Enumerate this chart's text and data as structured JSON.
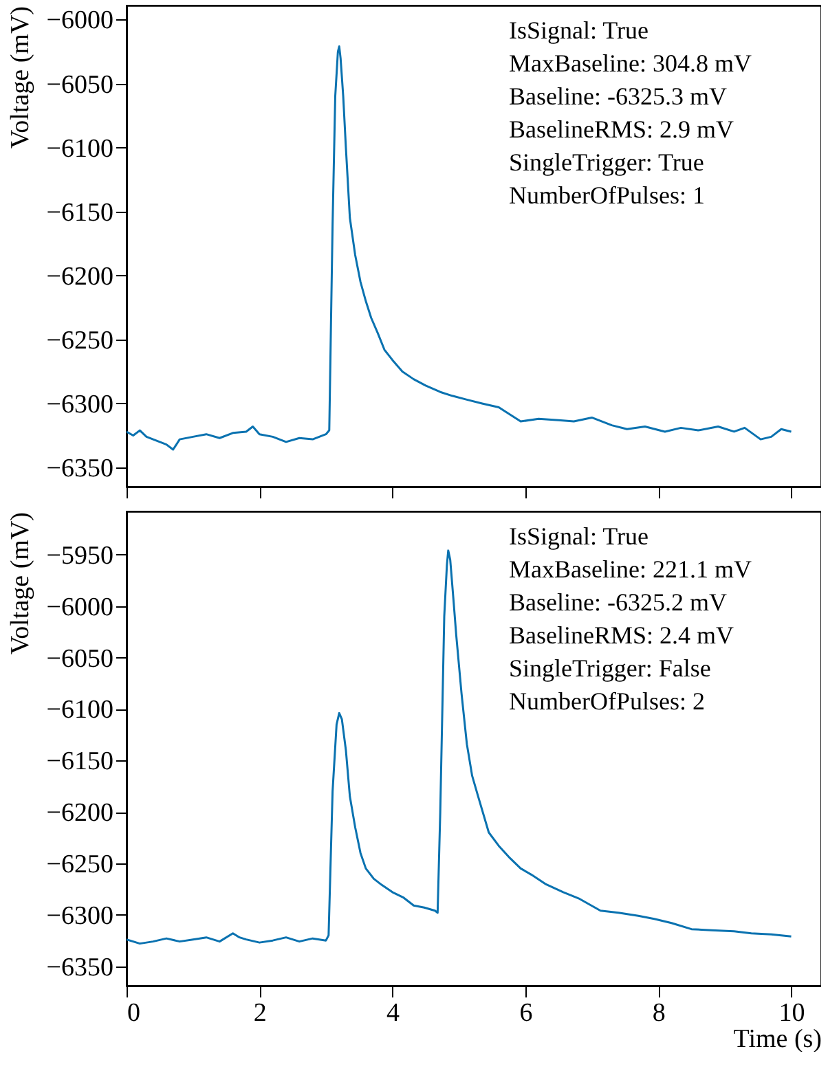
{
  "chart_data": [
    {
      "type": "line",
      "ylabel": "Voltage (mV)",
      "xlim": [
        0,
        10.45
      ],
      "xticks": [
        0,
        2,
        4,
        6,
        8,
        10
      ],
      "ylim": [
        -6365,
        -5989
      ],
      "yticks": [
        -6350,
        -6300,
        -6250,
        -6200,
        -6150,
        -6100,
        -6050,
        -6000
      ],
      "tick_labels": "y",
      "annotations": [
        "IsSignal: True",
        "MaxBaseline: 304.8 mV",
        "Baseline: -6325.3 mV",
        "BaselineRMS: 2.9 mV",
        "SingleTrigger: True",
        "NumberOfPulses: 1"
      ],
      "series": [
        {
          "color": "#0a72b0",
          "x": [
            0,
            0.1,
            0.2,
            0.3,
            0.4,
            0.5,
            0.6,
            0.7,
            0.8,
            1.0,
            1.2,
            1.4,
            1.6,
            1.8,
            1.9,
            2.0,
            2.2,
            2.4,
            2.6,
            2.8,
            3.0,
            3.05,
            3.1,
            3.14,
            3.18,
            3.2,
            3.22,
            3.26,
            3.3,
            3.36,
            3.44,
            3.52,
            3.6,
            3.68,
            3.78,
            3.88,
            4.0,
            4.15,
            4.32,
            4.5,
            4.72,
            4.9,
            5.12,
            5.35,
            5.6,
            5.93,
            6.2,
            6.5,
            6.73,
            7.0,
            7.3,
            7.53,
            7.8,
            8.1,
            8.34,
            8.6,
            8.9,
            9.14,
            9.3,
            9.54,
            9.7,
            9.85,
            10
          ],
          "values": [
            -6322,
            -6325,
            -6321,
            -6326,
            -6328,
            -6330,
            -6332,
            -6336,
            -6328,
            -6326,
            -6324,
            -6327,
            -6323,
            -6322,
            -6318,
            -6324,
            -6326,
            -6330,
            -6327,
            -6328,
            -6324,
            -6321,
            -6160,
            -6060,
            -6025,
            -6021,
            -6030,
            -6060,
            -6100,
            -6155,
            -6184,
            -6205,
            -6220,
            -6233,
            -6245,
            -6258,
            -6266,
            -6275,
            -6281,
            -6286,
            -6291,
            -6294,
            -6297,
            -6300,
            -6303,
            -6314,
            -6312,
            -6313,
            -6314,
            -6311,
            -6317,
            -6320,
            -6318,
            -6322,
            -6319,
            -6321,
            -6318,
            -6322,
            -6319,
            -6328,
            -6326,
            -6320,
            -6322
          ]
        }
      ]
    },
    {
      "type": "line",
      "xlabel": "Time (s)",
      "ylabel": "Voltage (mV)",
      "xlim": [
        0,
        10.45
      ],
      "xticks": [
        0,
        2,
        4,
        6,
        8,
        10
      ],
      "ylim": [
        -6369,
        -5908
      ],
      "yticks": [
        -6350,
        -6300,
        -6250,
        -6200,
        -6150,
        -6100,
        -6050,
        -6000,
        -5950
      ],
      "annotations": [
        "IsSignal: True",
        "MaxBaseline: 221.1 mV",
        "Baseline: -6325.2 mV",
        "BaselineRMS: 2.4 mV",
        "SingleTrigger: False",
        "NumberOfPulses: 2"
      ],
      "series": [
        {
          "color": "#0a72b0",
          "x": [
            0,
            0.2,
            0.4,
            0.6,
            0.8,
            1.0,
            1.2,
            1.4,
            1.6,
            1.7,
            1.8,
            2.0,
            2.2,
            2.4,
            2.6,
            2.8,
            3.0,
            3.04,
            3.1,
            3.16,
            3.2,
            3.24,
            3.3,
            3.36,
            3.44,
            3.52,
            3.6,
            3.72,
            3.84,
            4.0,
            4.16,
            4.32,
            4.48,
            4.64,
            4.68,
            4.72,
            4.78,
            4.82,
            4.84,
            4.87,
            4.92,
            4.96,
            5.04,
            5.12,
            5.2,
            5.29,
            5.45,
            5.6,
            5.77,
            5.93,
            6.09,
            6.3,
            6.57,
            6.8,
            7.13,
            7.4,
            7.7,
            7.94,
            8.2,
            8.5,
            8.8,
            9.14,
            9.4,
            9.7,
            10
          ],
          "values": [
            -6324,
            -6328,
            -6326,
            -6323,
            -6326,
            -6324,
            -6322,
            -6326,
            -6318,
            -6322,
            -6324,
            -6327,
            -6325,
            -6322,
            -6326,
            -6323,
            -6325,
            -6320,
            -6180,
            -6115,
            -6104,
            -6110,
            -6140,
            -6185,
            -6215,
            -6240,
            -6255,
            -6265,
            -6271,
            -6278,
            -6283,
            -6291,
            -6293,
            -6296,
            -6298,
            -6200,
            -6010,
            -5960,
            -5946,
            -5955,
            -5995,
            -6028,
            -6085,
            -6134,
            -6165,
            -6185,
            -6220,
            -6233,
            -6245,
            -6255,
            -6261,
            -6270,
            -6278,
            -6284,
            -6296,
            -6298,
            -6301,
            -6304,
            -6308,
            -6314,
            -6315,
            -6316,
            -6318,
            -6319,
            -6321
          ]
        }
      ]
    }
  ]
}
